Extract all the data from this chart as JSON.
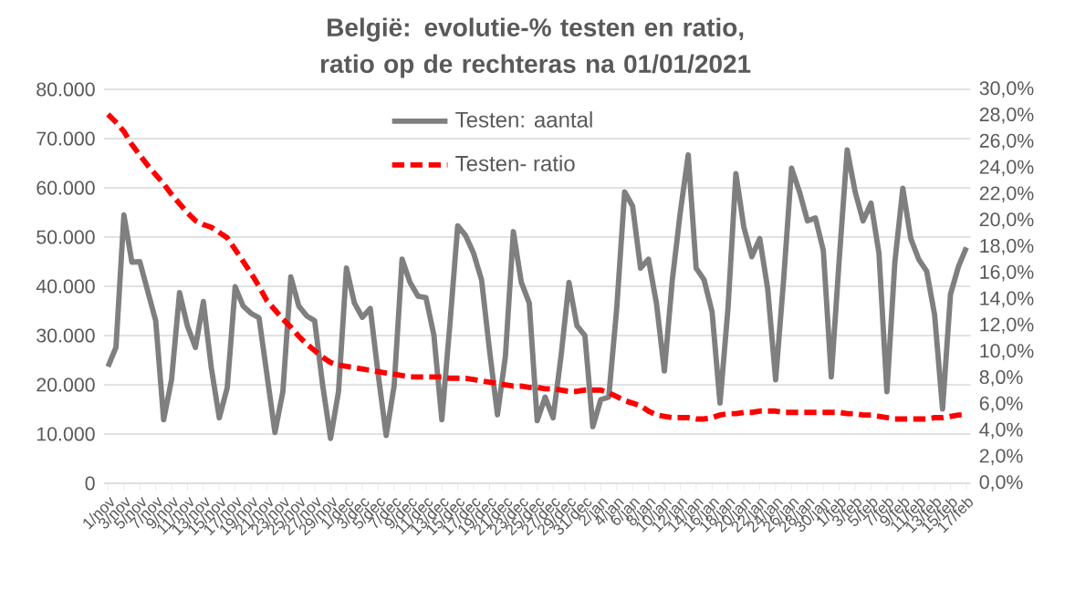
{
  "chart_data": {
    "type": "line",
    "title": "België: evolutie-% testen en ratio, ratio op de rechteras na 01/01/2021",
    "categories": [
      "1/nov",
      null,
      "3/nov",
      null,
      "5/nov",
      null,
      "7/nov",
      null,
      "9/nov",
      null,
      "11/nov",
      null,
      "13/nov",
      null,
      "15/nov",
      null,
      "17/nov",
      null,
      "19/nov",
      null,
      "21/nov",
      null,
      "23/nov",
      null,
      "25/nov",
      null,
      "27/nov",
      null,
      "29/nov",
      null,
      "1/dec",
      null,
      "3/dec",
      null,
      "5/dec",
      null,
      "7/dec",
      null,
      "9/dec",
      null,
      "11/dec",
      null,
      "13/dec",
      null,
      "15/dec",
      null,
      "17/dec",
      null,
      "19/dec",
      null,
      "21/dec",
      null,
      "23/dec",
      null,
      "25/dec",
      null,
      "27/dec",
      null,
      "29/dec",
      null,
      "31/dec",
      null,
      "2/jan",
      null,
      "4/jan",
      null,
      "6/jan",
      null,
      "8/jan",
      null,
      "10/jan",
      null,
      "12/jan",
      null,
      "14/jan",
      null,
      "16/jan",
      null,
      "18/jan",
      null,
      "20/jan",
      null,
      "22/jan",
      null,
      "24/jan",
      null,
      "26/jan",
      null,
      "28/jan",
      null,
      "30/jan",
      null,
      "1/feb",
      null,
      "3/feb",
      null,
      "5/feb",
      null,
      "7/feb",
      null,
      "9/feb",
      null,
      "11/feb",
      null,
      "13/feb",
      null,
      "15/feb",
      null,
      "17/feb"
    ],
    "series": [
      {
        "name": "Testen: aantal",
        "color": "#7f7f7f",
        "line_style": "solid",
        "values": [
          23700,
          27600,
          54500,
          44900,
          45000,
          39000,
          33000,
          12900,
          21100,
          38700,
          31900,
          27600,
          36900,
          23400,
          13300,
          19400,
          39900,
          36000,
          34500,
          33600,
          22000,
          10300,
          18600,
          41900,
          36000,
          34000,
          33000,
          20000,
          9100,
          18600,
          43700,
          36600,
          33700,
          35500,
          22000,
          9700,
          19800,
          45500,
          40800,
          38000,
          37700,
          30100,
          12900,
          32000,
          52300,
          50300,
          46700,
          41300,
          27000,
          13900,
          25800,
          51100,
          40800,
          36600,
          12700,
          17500,
          13300,
          25800,
          40800,
          32000,
          30000,
          11500,
          17000,
          17500,
          35400,
          59200,
          56300,
          43700,
          45500,
          36600,
          22800,
          41300,
          55000,
          66700,
          43700,
          41300,
          34800,
          16300,
          35400,
          62900,
          52000,
          46000,
          49700,
          39500,
          21000,
          41300,
          64000,
          59200,
          53300,
          53900,
          47300,
          21600,
          45500,
          67700,
          59200,
          53300,
          56900,
          46700,
          18600,
          44900,
          59900,
          49700,
          45500,
          43100,
          34200,
          15100,
          38400,
          44000,
          47900
        ]
      },
      {
        "name": "Testen- ratio",
        "color": "#ff0000",
        "line_style": "dashed",
        "axis": "y2",
        "values": [
          28.1,
          27.5,
          26.8,
          25.8,
          25.0,
          24.2,
          23.5,
          22.8,
          22.0,
          21.3,
          20.6,
          20.0,
          19.7,
          19.5,
          19.1,
          18.7,
          17.8,
          16.9,
          16.0,
          15.0,
          13.9,
          13.2,
          12.5,
          11.9,
          11.2,
          10.6,
          10.1,
          9.6,
          9.2,
          9.0,
          8.9,
          8.8,
          8.7,
          8.6,
          8.5,
          8.4,
          8.3,
          8.2,
          8.1,
          8.1,
          8.1,
          8.1,
          8.1,
          8.0,
          8.0,
          8.0,
          7.9,
          7.8,
          7.7,
          7.6,
          7.5,
          7.4,
          7.4,
          7.3,
          7.3,
          7.2,
          7.2,
          7.1,
          7.0,
          7.0,
          7.1,
          7.1,
          7.1,
          6.9,
          6.6,
          6.3,
          6.1,
          5.9,
          5.5,
          5.2,
          5.1,
          5.0,
          5.0,
          5.0,
          4.9,
          4.9,
          5.0,
          5.2,
          5.3,
          5.3,
          5.4,
          5.4,
          5.5,
          5.5,
          5.5,
          5.4,
          5.4,
          5.4,
          5.4,
          5.4,
          5.4,
          5.4,
          5.4,
          5.3,
          5.3,
          5.2,
          5.2,
          5.1,
          5.0,
          4.9,
          4.9,
          4.9,
          4.9,
          4.9,
          5.0,
          5.0,
          5.1,
          5.2,
          5.2
        ]
      }
    ],
    "ylim": [
      0,
      80000
    ],
    "yticks": [
      0,
      {
        "value": 10000,
        "label": "10.000"
      },
      {
        "value": 20000,
        "label": "20.000"
      },
      {
        "value": 30000,
        "label": "30.000"
      },
      {
        "value": 40000,
        "label": "40.000"
      },
      {
        "value": 50000,
        "label": "50.000"
      },
      {
        "value": 60000,
        "label": "60.000"
      },
      {
        "value": 70000,
        "label": "70.000"
      },
      {
        "value": 80000,
        "label": "80.000"
      }
    ],
    "y2lim": [
      0,
      30
    ],
    "y2ticks": [
      {
        "value": 0,
        "label": "0,0%"
      },
      {
        "value": 2,
        "label": "2,0%"
      },
      {
        "value": 4,
        "label": "4,0%"
      },
      {
        "value": 6,
        "label": "6,0%"
      },
      {
        "value": 8,
        "label": "8,0%"
      },
      {
        "value": 10,
        "label": "10,0%"
      },
      {
        "value": 12,
        "label": "12,0%"
      },
      {
        "value": 14,
        "label": "14,0%"
      },
      {
        "value": 16,
        "label": "16,0%"
      },
      {
        "value": 18,
        "label": "18,0%"
      },
      {
        "value": 20,
        "label": "20,0%"
      },
      {
        "value": 22,
        "label": "22,0%"
      },
      {
        "value": 24,
        "label": "24,0%"
      },
      {
        "value": 26,
        "label": "26,0%"
      },
      {
        "value": 28,
        "label": "28,0%"
      },
      {
        "value": 30,
        "label": "30,0%"
      }
    ],
    "grid": "y",
    "legend": "top",
    "marker": "none"
  }
}
